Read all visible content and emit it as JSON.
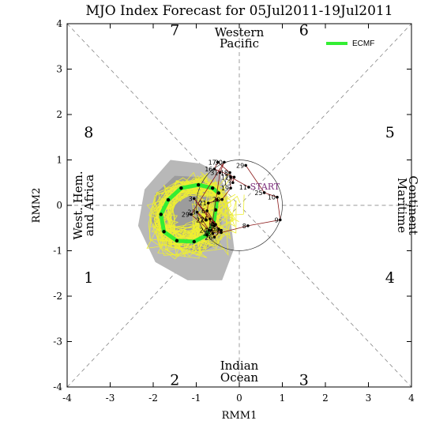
{
  "chart_data": {
    "type": "scatter",
    "title": "MJO Index Forecast for 05Jul2011-19Jul2011",
    "xlabel": "RMM1",
    "ylabel": "RMM2",
    "xlim": [
      -4,
      4
    ],
    "ylim": [
      -4,
      4
    ],
    "x_ticks": [
      "-4",
      "-3",
      "-2",
      "-1",
      "0",
      "1",
      "2",
      "3",
      "4"
    ],
    "y_ticks": [
      "-4",
      "-3",
      "-2",
      "-1",
      "0",
      "1",
      "2",
      "3",
      "4"
    ],
    "grid": false,
    "legend_position": "top-right",
    "legend": [
      {
        "name": "ECMF",
        "color": "#33ee33"
      }
    ],
    "phases": [
      {
        "label": "1",
        "x": -3.5,
        "y": -1.6
      },
      {
        "label": "2",
        "x": -1.5,
        "y": -3.85
      },
      {
        "label": "3",
        "x": 1.5,
        "y": -3.85
      },
      {
        "label": "4",
        "x": 3.5,
        "y": -1.6
      },
      {
        "label": "5",
        "x": 3.5,
        "y": 1.6
      },
      {
        "label": "6",
        "x": 1.5,
        "y": 3.85
      },
      {
        "label": "7",
        "x": -1.5,
        "y": 3.85
      },
      {
        "label": "8",
        "x": -3.5,
        "y": 1.6
      }
    ],
    "regions": {
      "top": [
        "Western",
        "Pacific"
      ],
      "bottom": [
        "Indian",
        "Ocean"
      ],
      "left": [
        "West. Hem.",
        "and Africa"
      ],
      "right": [
        "Maritime",
        "Continent"
      ]
    },
    "start_label": "START",
    "observed_path": {
      "color": "#8b1a1a",
      "points": [
        {
          "label": "11",
          "x": 0.22,
          "y": 0.4
        },
        {
          "label": "12",
          "x": -0.2,
          "y": 0.62
        },
        {
          "label": "13",
          "x": -0.15,
          "y": 0.5
        },
        {
          "label": "15",
          "x": -0.12,
          "y": 0.62
        },
        {
          "label": "16",
          "x": -0.58,
          "y": 0.8
        },
        {
          "label": "17",
          "x": -0.5,
          "y": 0.95
        },
        {
          "label": "18",
          "x": -0.22,
          "y": 0.72
        },
        {
          "label": "19",
          "x": -0.2,
          "y": 0.38
        },
        {
          "label": "20",
          "x": -0.4,
          "y": 0.13
        },
        {
          "label": "21",
          "x": -0.72,
          "y": 0.05
        },
        {
          "label": "22",
          "x": -0.78,
          "y": -0.32
        },
        {
          "label": "23",
          "x": -0.98,
          "y": -0.15
        },
        {
          "label": "24",
          "x": -0.7,
          "y": -0.55
        },
        {
          "label": "25",
          "x": -0.68,
          "y": -0.3
        },
        {
          "label": "26",
          "x": -0.58,
          "y": -0.7
        },
        {
          "label": "27",
          "x": -0.42,
          "y": -0.55
        },
        {
          "label": "28",
          "x": -0.62,
          "y": -0.62
        },
        {
          "label": "29",
          "x": -1.12,
          "y": -0.2
        },
        {
          "label": "30",
          "x": -0.35,
          "y": 0.95
        },
        {
          "label": "31",
          "x": -0.45,
          "y": 0.72
        },
        {
          "label": "1",
          "x": -0.65,
          "y": -0.55
        },
        {
          "label": "2",
          "x": -0.58,
          "y": -0.45
        },
        {
          "label": "3",
          "x": -1.05,
          "y": 0.15
        },
        {
          "label": "4",
          "x": -0.55,
          "y": -0.42
        },
        {
          "label": "5",
          "x": -0.48,
          "y": -0.52
        },
        {
          "label": "6",
          "x": -0.75,
          "y": -0.12
        },
        {
          "label": "7",
          "x": -0.42,
          "y": -0.6
        },
        {
          "label": "8",
          "x": 0.2,
          "y": -0.45
        },
        {
          "label": "9",
          "x": 0.95,
          "y": -0.32
        },
        {
          "label": "10",
          "x": 0.88,
          "y": 0.18
        },
        {
          "label": "25",
          "x": 0.58,
          "y": 0.28
        },
        {
          "label": "29",
          "x": 0.15,
          "y": 0.88
        }
      ]
    },
    "ecmf_mean": {
      "name": "ECMF",
      "color": "#33ee33",
      "points": [
        {
          "x": -0.48,
          "y": 0.27
        },
        {
          "x": -0.62,
          "y": 0.38
        },
        {
          "x": -0.95,
          "y": 0.45
        },
        {
          "x": -1.35,
          "y": 0.38
        },
        {
          "x": -1.65,
          "y": 0.12
        },
        {
          "x": -1.82,
          "y": -0.2
        },
        {
          "x": -1.75,
          "y": -0.58
        },
        {
          "x": -1.45,
          "y": -0.78
        },
        {
          "x": -1.05,
          "y": -0.8
        },
        {
          "x": -0.75,
          "y": -0.65
        },
        {
          "x": -0.6,
          "y": -0.38
        },
        {
          "x": -0.55,
          "y": -0.1
        },
        {
          "x": -0.52,
          "y": 0.12
        }
      ]
    },
    "spread_outer": {
      "color": "#b8b8b8",
      "points": [
        {
          "x": -1.6,
          "y": 1.0
        },
        {
          "x": -0.9,
          "y": 0.92
        },
        {
          "x": -0.45,
          "y": 0.7
        },
        {
          "x": -0.3,
          "y": 0.25
        },
        {
          "x": -0.2,
          "y": -0.35
        },
        {
          "x": -0.12,
          "y": -0.95
        },
        {
          "x": -0.4,
          "y": -1.65
        },
        {
          "x": -1.2,
          "y": -1.65
        },
        {
          "x": -1.95,
          "y": -1.25
        },
        {
          "x": -2.35,
          "y": -0.45
        },
        {
          "x": -2.2,
          "y": 0.35
        }
      ]
    },
    "spread_inner": {
      "color": "#9c9c9c",
      "points": [
        {
          "x": -1.5,
          "y": 0.65
        },
        {
          "x": -0.85,
          "y": 0.62
        },
        {
          "x": -0.5,
          "y": 0.35
        },
        {
          "x": -0.4,
          "y": -0.2
        },
        {
          "x": -0.45,
          "y": -0.85
        },
        {
          "x": -0.95,
          "y": -1.05
        },
        {
          "x": -1.65,
          "y": -0.9
        },
        {
          "x": -2.05,
          "y": -0.35
        },
        {
          "x": -1.95,
          "y": 0.25
        }
      ]
    },
    "members_color": "#eeee33"
  }
}
